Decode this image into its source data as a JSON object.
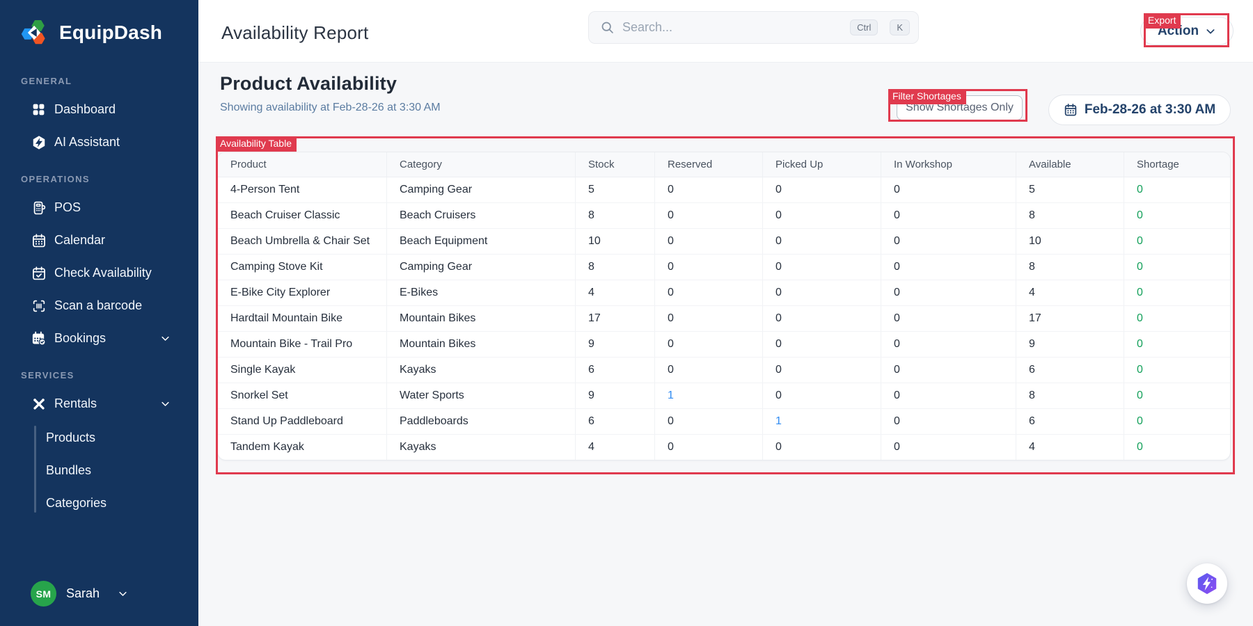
{
  "app": {
    "name": "EquipDash"
  },
  "sidebar": {
    "sections": [
      {
        "label": "GENERAL",
        "items": [
          {
            "label": "Dashboard"
          },
          {
            "label": "AI Assistant"
          }
        ]
      },
      {
        "label": "OPERATIONS",
        "items": [
          {
            "label": "POS"
          },
          {
            "label": "Calendar"
          },
          {
            "label": "Check Availability"
          },
          {
            "label": "Scan a barcode"
          },
          {
            "label": "Bookings"
          }
        ]
      },
      {
        "label": "SERVICES",
        "items": [
          {
            "label": "Rentals",
            "children": [
              "Products",
              "Bundles",
              "Categories"
            ]
          }
        ]
      }
    ],
    "user": {
      "initials": "SM",
      "name": "Sarah"
    }
  },
  "topbar": {
    "title": "Availability Report",
    "search": {
      "placeholder": "Search...",
      "keys": [
        "Ctrl",
        "K"
      ]
    },
    "action_button": {
      "label": "Action"
    }
  },
  "page": {
    "heading": "Product Availability",
    "subheading": "Showing availability at Feb-28-26 at 3:30 AM",
    "filter_button_label": "Show Shortages Only",
    "date_button_label": "Feb-28-26 at 3:30 AM"
  },
  "table": {
    "columns": [
      "Product",
      "Category",
      "Stock",
      "Reserved",
      "Picked Up",
      "In Workshop",
      "Available",
      "Shortage"
    ],
    "rows": [
      [
        "4-Person Tent",
        "Camping Gear",
        "5",
        "0",
        "0",
        "0",
        "5",
        "0"
      ],
      [
        "Beach Cruiser Classic",
        "Beach Cruisers",
        "8",
        "0",
        "0",
        "0",
        "8",
        "0"
      ],
      [
        "Beach Umbrella & Chair Set",
        "Beach Equipment",
        "10",
        "0",
        "0",
        "0",
        "10",
        "0"
      ],
      [
        "Camping Stove Kit",
        "Camping Gear",
        "8",
        "0",
        "0",
        "0",
        "8",
        "0"
      ],
      [
        "E-Bike City Explorer",
        "E-Bikes",
        "4",
        "0",
        "0",
        "0",
        "4",
        "0"
      ],
      [
        "Hardtail Mountain Bike",
        "Mountain Bikes",
        "17",
        "0",
        "0",
        "0",
        "17",
        "0"
      ],
      [
        "Mountain Bike - Trail Pro",
        "Mountain Bikes",
        "9",
        "0",
        "0",
        "0",
        "9",
        "0"
      ],
      [
        "Single Kayak",
        "Kayaks",
        "6",
        "0",
        "0",
        "0",
        "6",
        "0"
      ],
      [
        "Snorkel Set",
        "Water Sports",
        "9",
        "1",
        "0",
        "0",
        "8",
        "0"
      ],
      [
        "Stand Up Paddleboard",
        "Paddleboards",
        "6",
        "0",
        "1",
        "0",
        "6",
        "0"
      ],
      [
        "Tandem Kayak",
        "Kayaks",
        "4",
        "0",
        "0",
        "0",
        "4",
        "0"
      ]
    ]
  },
  "annotations": {
    "export": {
      "label": "Export"
    },
    "filter": {
      "label": "Filter Shortages"
    },
    "table": {
      "label": "Availability Table"
    }
  },
  "colors": {
    "sidebar_navy": "#14345e",
    "accent_navy": "#24436b",
    "annotation_red": "#e03a4e",
    "link_blue": "#2f8bf2",
    "ok_green": "#13a05a",
    "avatar_green": "#27a44b"
  }
}
